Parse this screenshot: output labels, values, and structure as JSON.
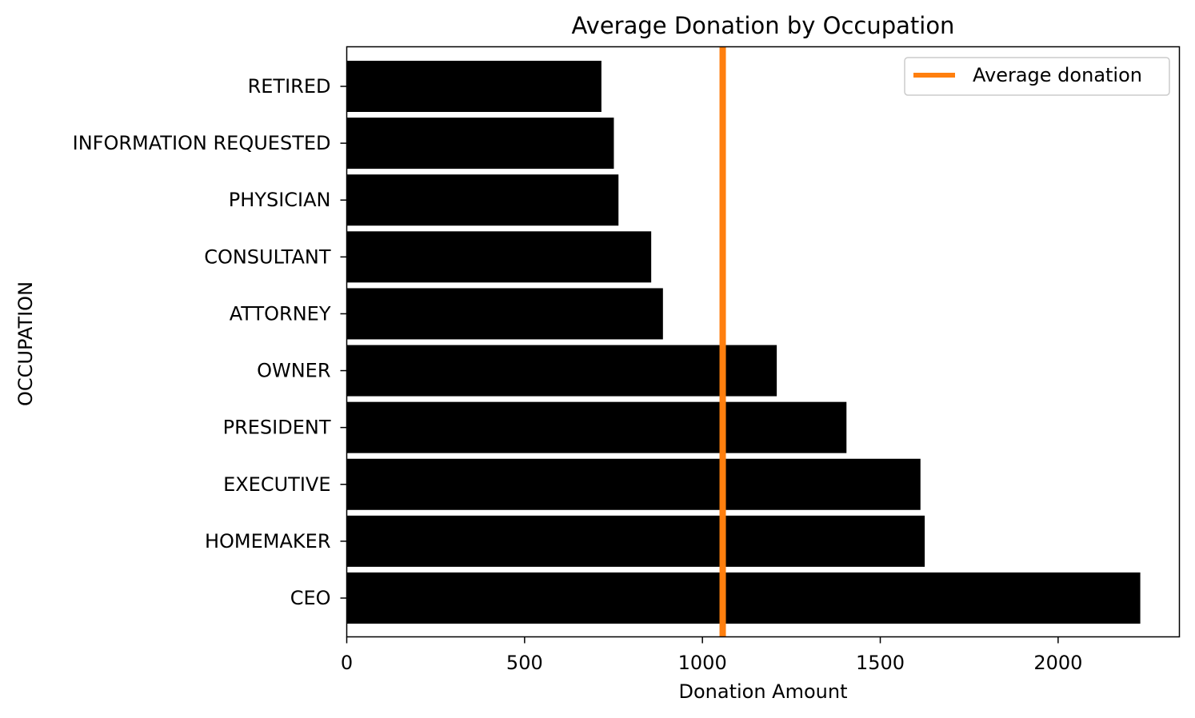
{
  "chart_data": {
    "type": "bar",
    "orientation": "horizontal",
    "title": "Average Donation by Occupation",
    "xlabel": "Donation Amount",
    "ylabel": "OCCUPATION",
    "categories": [
      "RETIRED",
      "INFORMATION REQUESTED",
      "PHYSICIAN",
      "CONSULTANT",
      "ATTORNEY",
      "OWNER",
      "PRESIDENT",
      "EXECUTIVE",
      "HOMEMAKER",
      "CEO"
    ],
    "values": [
      716,
      751,
      764,
      856,
      889,
      1209,
      1405,
      1613,
      1625,
      2231
    ],
    "xlim": [
      0,
      2341
    ],
    "xticks": [
      0,
      500,
      1000,
      1500,
      2000
    ],
    "grid": false,
    "bar_color": "#000000",
    "reference_line": {
      "label": "Average donation",
      "value": 1057,
      "color": "#ff7f0e"
    },
    "legend": {
      "position": "top-right",
      "entries": [
        "Average donation"
      ]
    }
  }
}
